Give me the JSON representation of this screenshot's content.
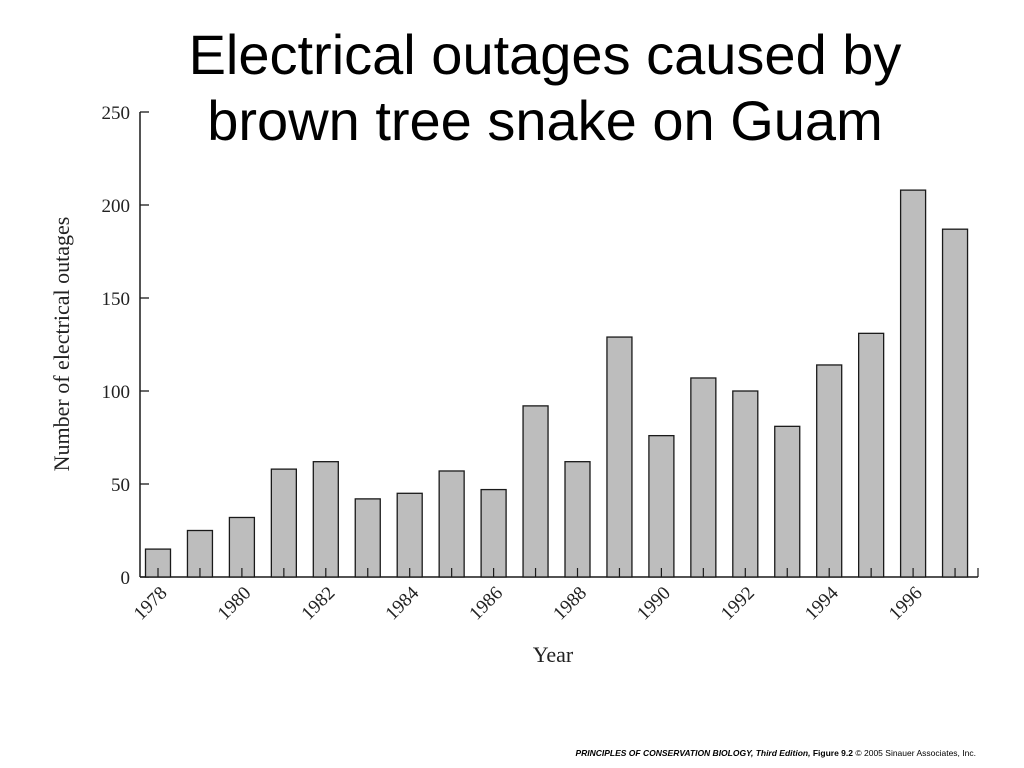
{
  "title_line1": "Electrical outages caused by",
  "title_line2": "brown tree snake on Guam",
  "footer": {
    "book": "PRINCIPLES OF CONSERVATION BIOLOGY, Third Edition,",
    "figure": "Figure 9.2",
    "copyright": "© 2005 Sinauer Associates, Inc."
  },
  "colors": {
    "bar_fill": "#bdbdbd",
    "bar_stroke": "#1a1a1a",
    "axis": "#1a1a1a"
  },
  "chart_data": {
    "type": "bar",
    "title": "Electrical outages caused by brown tree snake on Guam",
    "xlabel": "Year",
    "ylabel": "Number of electrical outages",
    "categories": [
      1978,
      1979,
      1980,
      1981,
      1982,
      1983,
      1984,
      1985,
      1986,
      1987,
      1988,
      1989,
      1990,
      1991,
      1992,
      1993,
      1994,
      1995,
      1996,
      1997
    ],
    "values": [
      15,
      25,
      32,
      58,
      62,
      42,
      45,
      57,
      47,
      92,
      62,
      129,
      76,
      107,
      100,
      81,
      114,
      131,
      208,
      187
    ],
    "x_tick_labels": [
      "1978",
      "1980",
      "1982",
      "1984",
      "1986",
      "1988",
      "1990",
      "1992",
      "1994",
      "1996"
    ],
    "yticks": [
      0,
      50,
      100,
      150,
      200,
      250
    ],
    "ylim": [
      0,
      250
    ],
    "grid": false,
    "legend": "none"
  }
}
